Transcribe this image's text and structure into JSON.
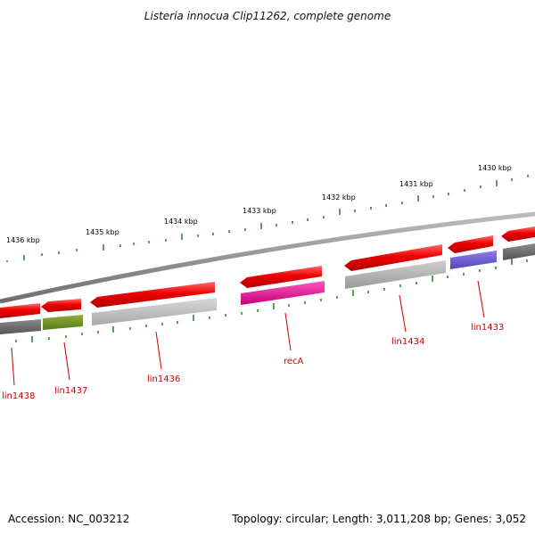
{
  "title": "Listeria innocua Clip11262, complete genome",
  "footer": {
    "accession": "Accession: NC_003212",
    "summary": "Topology: circular; Length: 3,011,208 bp; Genes: 3,052"
  },
  "ruler_labels": [
    "1436 kbp",
    "1435 kbp",
    "1434 kbp",
    "1433 kbp",
    "1432 kbp",
    "1431 kbp",
    "1430 kbp"
  ],
  "gene_labels": [
    "lin1438",
    "lin1437",
    "lin1436",
    "recA",
    "lin1434",
    "lin1433"
  ],
  "colors": {
    "backbone": "#8a8a8a",
    "tick": "#2e8b2e",
    "forward_strand": "#ee0000",
    "label": "#cc0000",
    "gene_lin1438": "#666666",
    "gene_lin1437": "#6b8e23",
    "gene_lin1436": "#bbbbbb",
    "gene_recA": "#ee1199",
    "gene_lin1434": "#aaaaaa",
    "gene_lin1433": "#6a5acd"
  }
}
